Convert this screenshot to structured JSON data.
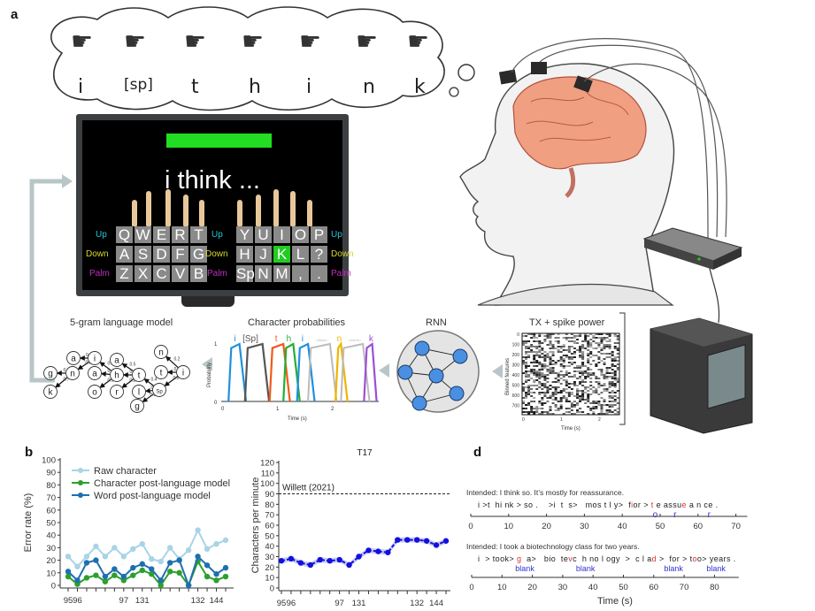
{
  "panels": {
    "a": "a",
    "b": "b",
    "d": "d"
  },
  "thought_bubble": {
    "letters": [
      "i",
      "[sp]",
      "t",
      "h",
      "i",
      "n",
      "k"
    ],
    "hand_icon": "hand-sign-icon"
  },
  "monitor": {
    "typed_text": "i think ...",
    "progress_bar_color": "#22dd22",
    "highlight_color": "#22cc22",
    "left_keys": [
      [
        "Q",
        "W",
        "E",
        "R",
        "T"
      ],
      [
        "A",
        "S",
        "D",
        "F",
        "G"
      ],
      [
        "Z",
        "X",
        "C",
        "V",
        "B"
      ]
    ],
    "right_keys": [
      [
        "Y",
        "U",
        "I",
        "O",
        "P"
      ],
      [
        "H",
        "J",
        "K",
        "L",
        "?"
      ],
      [
        "Sp",
        "N",
        "M",
        ",",
        "."
      ]
    ],
    "highlighted_key": "K",
    "row_labels": [
      {
        "text": "Up",
        "color": "#22c8d8"
      },
      {
        "text": "Down",
        "color": "#d8d830"
      },
      {
        "text": "Palm",
        "color": "#c030c0"
      }
    ]
  },
  "pipeline": {
    "language_model": {
      "title": "5-gram language model",
      "nodes": [
        "a",
        "i",
        "g",
        "n",
        "k",
        "a",
        "a",
        "h",
        "o",
        "r",
        "t",
        "l",
        "Sp",
        "g",
        "n",
        "t",
        "i"
      ],
      "edge_probs": [
        "0.2",
        "0.8",
        "0.3",
        "0.7",
        "0.3",
        "0.4",
        "0.3",
        "0.5",
        "0.3",
        "0.2",
        "0.4",
        "0.2",
        "0.3",
        "0.2",
        "0.3",
        "0.5"
      ]
    },
    "char_probs": {
      "title": "Character probabilities",
      "ylabel": "Probability",
      "xlabel": "Time (s)",
      "yticks": [
        "0",
        "1"
      ],
      "xticks": [
        "0",
        "1",
        "2"
      ],
      "chars": [
        {
          "label": "i",
          "color": "#1f8fe0"
        },
        {
          "label": "[Sp]",
          "color": "#555555"
        },
        {
          "label": "t",
          "color": "#f05a1a"
        },
        {
          "label": "h",
          "color": "#22b030"
        },
        {
          "label": "i",
          "color": "#1f8fe0"
        },
        {
          "label": "<blank>",
          "color": "#bbbbbb"
        },
        {
          "label": "n",
          "color": "#f0b400"
        },
        {
          "label": "<blank>",
          "color": "#bbbbbb"
        },
        {
          "label": "k",
          "color": "#9b4fd8"
        }
      ]
    },
    "rnn": {
      "title": "RNN",
      "node_color": "#4a90e2"
    },
    "neural": {
      "title": "TX + spike power",
      "ylabel": "Binned features",
      "xlabel": "Time (s)",
      "yticks": [
        "0",
        "100",
        "200",
        "300",
        "400",
        "500",
        "600",
        "700"
      ],
      "xticks": [
        "0",
        "1",
        "2"
      ]
    }
  },
  "chart_data": [
    {
      "type": "line",
      "ylabel": "Error rate (%)",
      "ylim": [
        0,
        100
      ],
      "yticks": [
        0,
        10,
        20,
        30,
        40,
        50,
        60,
        70,
        80,
        90,
        100
      ],
      "xtick_labels": [
        {
          "index": 0,
          "label": "95"
        },
        {
          "index": 1,
          "label": "96"
        },
        {
          "index": 6,
          "label": "97"
        },
        {
          "index": 8,
          "label": "131"
        },
        {
          "index": 14,
          "label": "132"
        },
        {
          "index": 16,
          "label": "144"
        }
      ],
      "legend_position": "top-left",
      "series": [
        {
          "name": "Raw character",
          "color": "#a8d4e6",
          "values": [
            23,
            15,
            23,
            31,
            23,
            30,
            23,
            29,
            33,
            21,
            19,
            30,
            21,
            28,
            44,
            29,
            33,
            36
          ]
        },
        {
          "name": "Character post-language model",
          "color": "#2ca02c",
          "values": [
            7,
            1,
            6,
            8,
            3,
            8,
            4,
            8,
            12,
            9,
            0,
            11,
            10,
            0,
            19,
            7,
            4,
            7
          ]
        },
        {
          "name": "Word post-language model",
          "color": "#1f6fb0",
          "values": [
            11,
            4,
            18,
            20,
            7,
            13,
            7,
            14,
            17,
            13,
            4,
            18,
            20,
            0,
            23,
            16,
            9,
            14
          ]
        }
      ]
    },
    {
      "type": "line",
      "title": "T17",
      "ylabel": "Characters per minute",
      "ylim": [
        0,
        120
      ],
      "yticks": [
        0,
        10,
        20,
        30,
        40,
        50,
        60,
        70,
        80,
        90,
        100,
        110,
        120
      ],
      "xtick_labels": [
        {
          "index": 0,
          "label": "95"
        },
        {
          "index": 1,
          "label": "96"
        },
        {
          "index": 6,
          "label": "97"
        },
        {
          "index": 8,
          "label": "131"
        },
        {
          "index": 14,
          "label": "132"
        },
        {
          "index": 16,
          "label": "144"
        }
      ],
      "reference_line": {
        "label": "Willett (2021)",
        "value": 90
      },
      "series": [
        {
          "color": "#1010e0",
          "band_color": "#b8b8f0",
          "values": [
            26,
            28,
            24,
            22,
            27,
            26,
            27,
            22,
            30,
            36,
            35,
            34,
            46,
            46,
            46,
            45,
            41,
            45
          ]
        }
      ]
    }
  ],
  "panel_d": {
    "xlabel": "Time (s)",
    "trials": [
      {
        "intended": "Intended: I think so. It’s mostly for reassurance.",
        "decoded": [
          {
            "t": "i >t  hi nk > so .    >i  t  s>   mos t l y>  f",
            "c": "n"
          },
          {
            "t": "i",
            "c": "e"
          },
          {
            "t": "or > ",
            "c": "n"
          },
          {
            "t": "t",
            "c": "e"
          },
          {
            "t": " e assu",
            "c": "n"
          },
          {
            "t": "e",
            "c": "e"
          },
          {
            "t": " a n ce .",
            "c": "n"
          }
        ],
        "corrections": [
          {
            "text": "o",
            "time": 48.5
          },
          {
            "text": "r",
            "time": 54
          },
          {
            "text": "r",
            "time": 63
          }
        ],
        "xticks": [
          0,
          10,
          20,
          30,
          40,
          50,
          60,
          70
        ],
        "xmax": 73
      },
      {
        "intended": "Intended: I took a biotechnology class for two years.",
        "decoded": [
          {
            "t": "i  > took> ",
            "c": "n"
          },
          {
            "t": "g",
            "c": "e"
          },
          {
            "t": "  a>   bio  te",
            "c": "n"
          },
          {
            "t": "v",
            "c": "e"
          },
          {
            "t": "c  h no l ogy  >  c l a",
            "c": "n"
          },
          {
            "t": "d",
            "c": "e"
          },
          {
            "t": " >  for > t",
            "c": "n"
          },
          {
            "t": "o",
            "c": "e"
          },
          {
            "t": "o> years .",
            "c": "n"
          }
        ],
        "corrections": [
          {
            "text": "blank",
            "time": 17
          },
          {
            "text": "blank",
            "time": 37
          },
          {
            "text": "blank",
            "time": 66
          },
          {
            "text": "blank",
            "time": 80
          }
        ],
        "xticks": [
          0,
          10,
          20,
          30,
          40,
          50,
          60,
          70,
          80
        ],
        "xmax": 88
      }
    ],
    "error_color": "#e03030",
    "correction_color": "#3030d0"
  }
}
